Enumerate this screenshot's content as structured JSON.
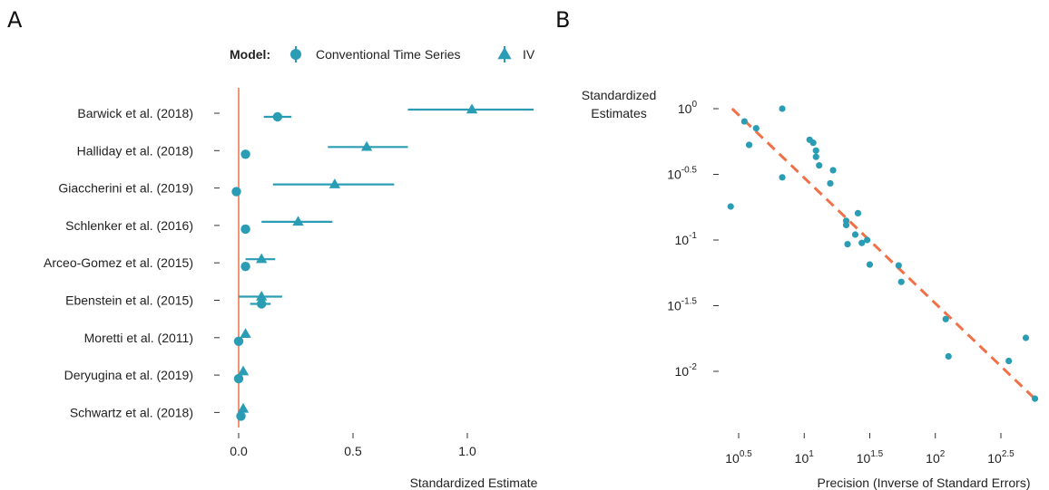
{
  "panel_a_letter": "A",
  "panel_b_letter": "B",
  "colors": {
    "series": "#2a9db5",
    "line": "#f07048"
  },
  "chart_data": [
    {
      "type": "forest",
      "xlabel": "Standardized Estimate",
      "legend": {
        "title": "Model:",
        "position": "top",
        "entries": [
          {
            "name": "Conventional Time Series",
            "marker": "circle"
          },
          {
            "name": "IV",
            "marker": "triangle"
          }
        ]
      },
      "xlim": [
        -0.07,
        1.33
      ],
      "xticks": [
        0.0,
        0.5,
        1.0
      ],
      "xtick_labels": [
        "0.0",
        "0.5",
        "1.0"
      ],
      "reference_line": 0.0,
      "studies": [
        {
          "label": "Barwick et al. (2018)",
          "cts": {
            "est": 0.17,
            "lo": 0.11,
            "hi": 0.23
          },
          "iv": {
            "est": 1.02,
            "lo": 0.74,
            "hi": 1.29
          }
        },
        {
          "label": "Halliday et al. (2018)",
          "cts": {
            "est": 0.03,
            "lo": 0.03,
            "hi": 0.03
          },
          "iv": {
            "est": 0.56,
            "lo": 0.39,
            "hi": 0.74
          }
        },
        {
          "label": "Giaccherini et al. (2019)",
          "cts": {
            "est": -0.01,
            "lo": -0.01,
            "hi": -0.01
          },
          "iv": {
            "est": 0.42,
            "lo": 0.15,
            "hi": 0.68
          }
        },
        {
          "label": "Schlenker et al. (2016)",
          "cts": {
            "est": 0.03,
            "lo": 0.03,
            "hi": 0.03
          },
          "iv": {
            "est": 0.26,
            "lo": 0.1,
            "hi": 0.41
          }
        },
        {
          "label": "Arceo-Gomez et al. (2015)",
          "cts": {
            "est": 0.03,
            "lo": 0.03,
            "hi": 0.03
          },
          "iv": {
            "est": 0.1,
            "lo": 0.03,
            "hi": 0.16
          }
        },
        {
          "label": "Ebenstein et al. (2015)",
          "cts": {
            "est": 0.1,
            "lo": 0.05,
            "hi": 0.14
          },
          "iv": {
            "est": 0.1,
            "lo": 0.0,
            "hi": 0.19
          }
        },
        {
          "label": "Moretti et al. (2011)",
          "cts": {
            "est": 0.0,
            "lo": 0.0,
            "hi": 0.0
          },
          "iv": {
            "est": 0.03,
            "lo": 0.03,
            "hi": 0.03
          }
        },
        {
          "label": "Deryugina et al. (2019)",
          "cts": {
            "est": 0.0,
            "lo": 0.0,
            "hi": 0.0
          },
          "iv": {
            "est": 0.02,
            "lo": 0.02,
            "hi": 0.02
          }
        },
        {
          "label": "Schwartz et al. (2018)",
          "cts": {
            "est": 0.01,
            "lo": 0.01,
            "hi": 0.01
          },
          "iv": {
            "est": 0.02,
            "lo": 0.02,
            "hi": 0.02
          }
        }
      ]
    },
    {
      "type": "scatter",
      "scale": "log-log",
      "xlabel": "Precision (Inverse of Standard Errors)",
      "ylabel": [
        "Standardized",
        "Estimates"
      ],
      "xlim_log10": [
        0.4,
        2.8
      ],
      "ylim_log10": [
        -2.4,
        0.1
      ],
      "xticks_log10": [
        0.5,
        1.0,
        1.5,
        2.0,
        2.5
      ],
      "xtick_labels": [
        {
          "base": "10",
          "exp": "0.5"
        },
        {
          "base": "10",
          "exp": "1"
        },
        {
          "base": "10",
          "exp": "1.5"
        },
        {
          "base": "10",
          "exp": "2"
        },
        {
          "base": "10",
          "exp": "2.5"
        }
      ],
      "yticks_log10": [
        0.0,
        -0.5,
        -1.0,
        -1.5,
        -2.0
      ],
      "ytick_labels": [
        {
          "base": "10",
          "exp": "0"
        },
        {
          "base": "10",
          "exp": "-0.5"
        },
        {
          "base": "10",
          "exp": "-1"
        },
        {
          "base": "10",
          "exp": "-1.5"
        },
        {
          "base": "10",
          "exp": "-2"
        }
      ],
      "fit_line": {
        "style": "dashed",
        "x_log10": [
          0.45,
          2.75
        ],
        "y_log10": [
          0.0,
          -2.2
        ]
      },
      "points": [
        {
          "x": 2.75,
          "y": 0.18
        },
        {
          "x": 3.5,
          "y": 0.8
        },
        {
          "x": 3.8,
          "y": 0.53
        },
        {
          "x": 4.3,
          "y": 0.71
        },
        {
          "x": 6.8,
          "y": 1.0
        },
        {
          "x": 6.8,
          "y": 0.3
        },
        {
          "x": 11.0,
          "y": 0.58
        },
        {
          "x": 11.7,
          "y": 0.55
        },
        {
          "x": 12.3,
          "y": 0.43
        },
        {
          "x": 12.3,
          "y": 0.48
        },
        {
          "x": 13.0,
          "y": 0.37
        },
        {
          "x": 15.8,
          "y": 0.27
        },
        {
          "x": 16.6,
          "y": 0.34
        },
        {
          "x": 20.9,
          "y": 0.14
        },
        {
          "x": 20.9,
          "y": 0.13
        },
        {
          "x": 21.4,
          "y": 0.093
        },
        {
          "x": 24.5,
          "y": 0.11
        },
        {
          "x": 25.7,
          "y": 0.16
        },
        {
          "x": 27.5,
          "y": 0.095
        },
        {
          "x": 30.2,
          "y": 0.1
        },
        {
          "x": 31.6,
          "y": 0.065
        },
        {
          "x": 52.5,
          "y": 0.064
        },
        {
          "x": 55.0,
          "y": 0.048
        },
        {
          "x": 120.0,
          "y": 0.025
        },
        {
          "x": 126.0,
          "y": 0.013
        },
        {
          "x": 363.0,
          "y": 0.012
        },
        {
          "x": 490.0,
          "y": 0.018
        },
        {
          "x": 575.0,
          "y": 0.0062
        }
      ]
    }
  ]
}
